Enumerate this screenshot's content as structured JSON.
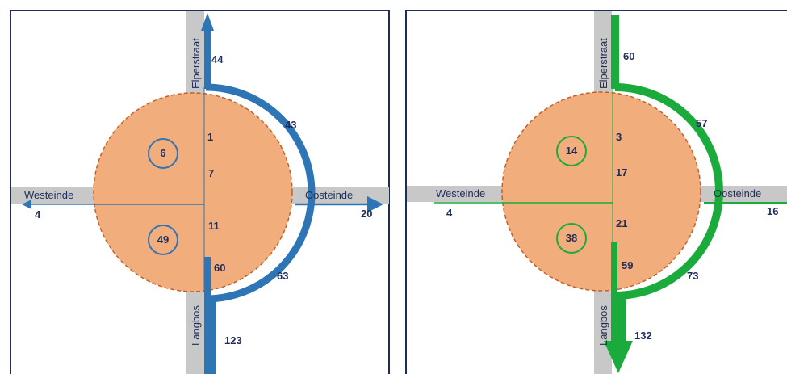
{
  "streets": {
    "north": "Elperstraat",
    "south": "Langbos",
    "west": "Westeinde",
    "east": "Oosteinde"
  },
  "colors": {
    "area_fill": "#f2ad7c",
    "area_border": "#c0622a",
    "road": "#c8c8c8",
    "left_flow": "#2e75b6",
    "right_flow": "#1aab3c",
    "text": "#1f2d5a"
  },
  "left_panel": {
    "north": "44",
    "arc_north": "43",
    "arc_south": "63",
    "center_1": "1",
    "center_7": "7",
    "center_11": "11",
    "center_60": "60",
    "west": "4",
    "east": "20",
    "south": "123",
    "circle_upper": "6",
    "circle_lower": "49"
  },
  "right_panel": {
    "north": "60",
    "arc_north": "57",
    "arc_south": "73",
    "center_3": "3",
    "center_17": "17",
    "center_21": "21",
    "center_59": "59",
    "west": "4",
    "east": "16",
    "south": "132",
    "circle_upper": "14",
    "circle_lower": "38"
  }
}
